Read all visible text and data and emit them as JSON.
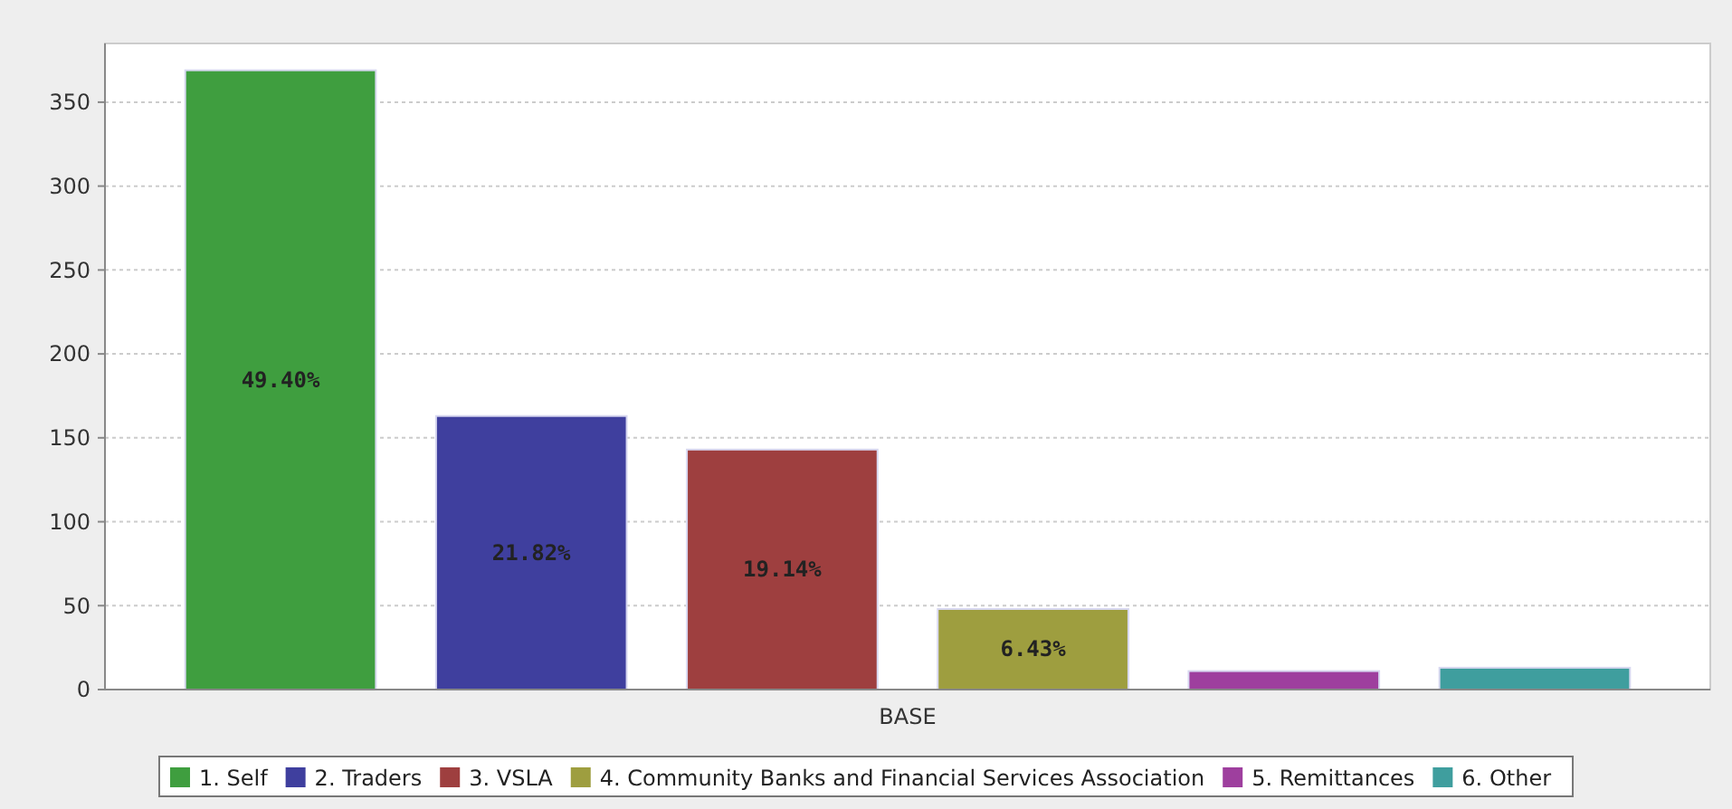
{
  "chart_data": {
    "type": "bar",
    "categories": [
      "BASE"
    ],
    "series": [
      {
        "name": "1. Self",
        "color": "#3f9e3f",
        "values": [
          369
        ]
      },
      {
        "name": "2. Traders",
        "color": "#3f3f9e",
        "values": [
          163
        ]
      },
      {
        "name": "3. VSLA",
        "color": "#9e3f3f",
        "values": [
          143
        ]
      },
      {
        "name": "4. Community Banks and Financial Services Association",
        "color": "#9e9e3f",
        "values": [
          48
        ]
      },
      {
        "name": "5. Remittances",
        "color": "#9e3f9e",
        "values": [
          11
        ]
      },
      {
        "name": "6. Other",
        "color": "#3f9e9e",
        "values": [
          13
        ]
      }
    ],
    "annotations": [
      "49.40%",
      "21.82%",
      "19.14%",
      "6.43%"
    ],
    "ylim": [
      0,
      385
    ],
    "yticks": [
      0,
      50,
      100,
      150,
      200,
      250,
      300,
      350
    ],
    "grid": "y",
    "legend": "bottom"
  }
}
